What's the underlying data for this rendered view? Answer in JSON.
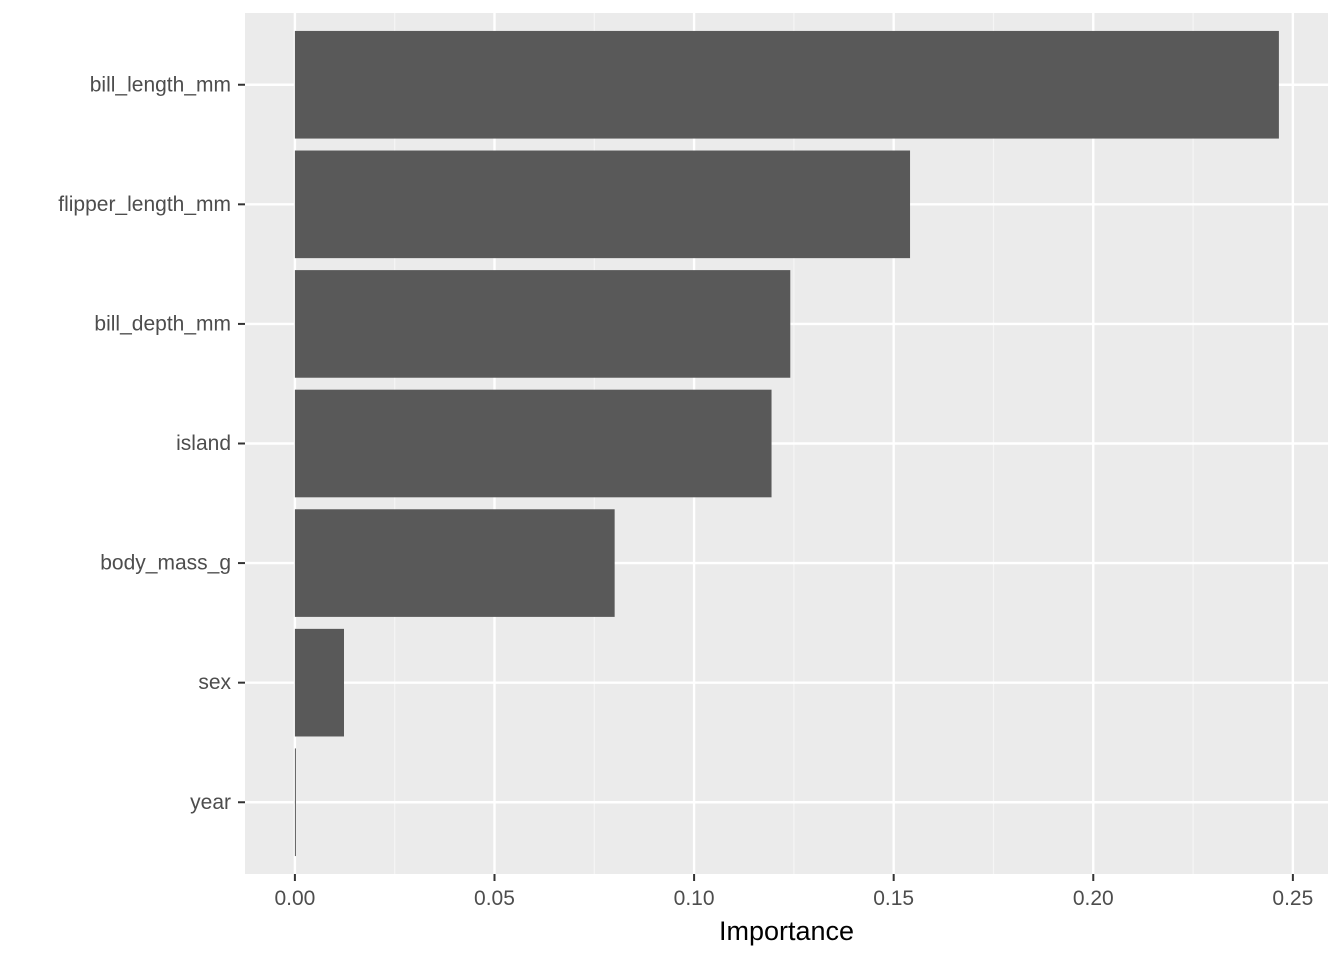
{
  "chart_data": {
    "type": "bar",
    "orientation": "horizontal",
    "title": "",
    "xlabel": "Importance",
    "ylabel": "",
    "categories": [
      "bill_length_mm",
      "flipper_length_mm",
      "bill_depth_mm",
      "island",
      "body_mass_g",
      "sex",
      "year"
    ],
    "values": [
      0.2465,
      0.1541,
      0.1241,
      0.1194,
      0.0801,
      0.0123,
      0.0002
    ],
    "xlim": [
      -0.0125,
      0.2588
    ],
    "xticks": [
      0.0,
      0.05,
      0.1,
      0.15,
      0.2,
      0.25
    ],
    "xtick_labels": [
      "0.00",
      "0.05",
      "0.10",
      "0.15",
      "0.20",
      "0.25"
    ],
    "grid": true,
    "legend": "none",
    "colors": {
      "bar": "#595959",
      "panel_background": "#EBEBEB",
      "grid_major": "#FFFFFF",
      "grid_minor": "#F5F5F5",
      "tick_text": "#4D4D4D",
      "tick_mark": "#333333"
    }
  }
}
